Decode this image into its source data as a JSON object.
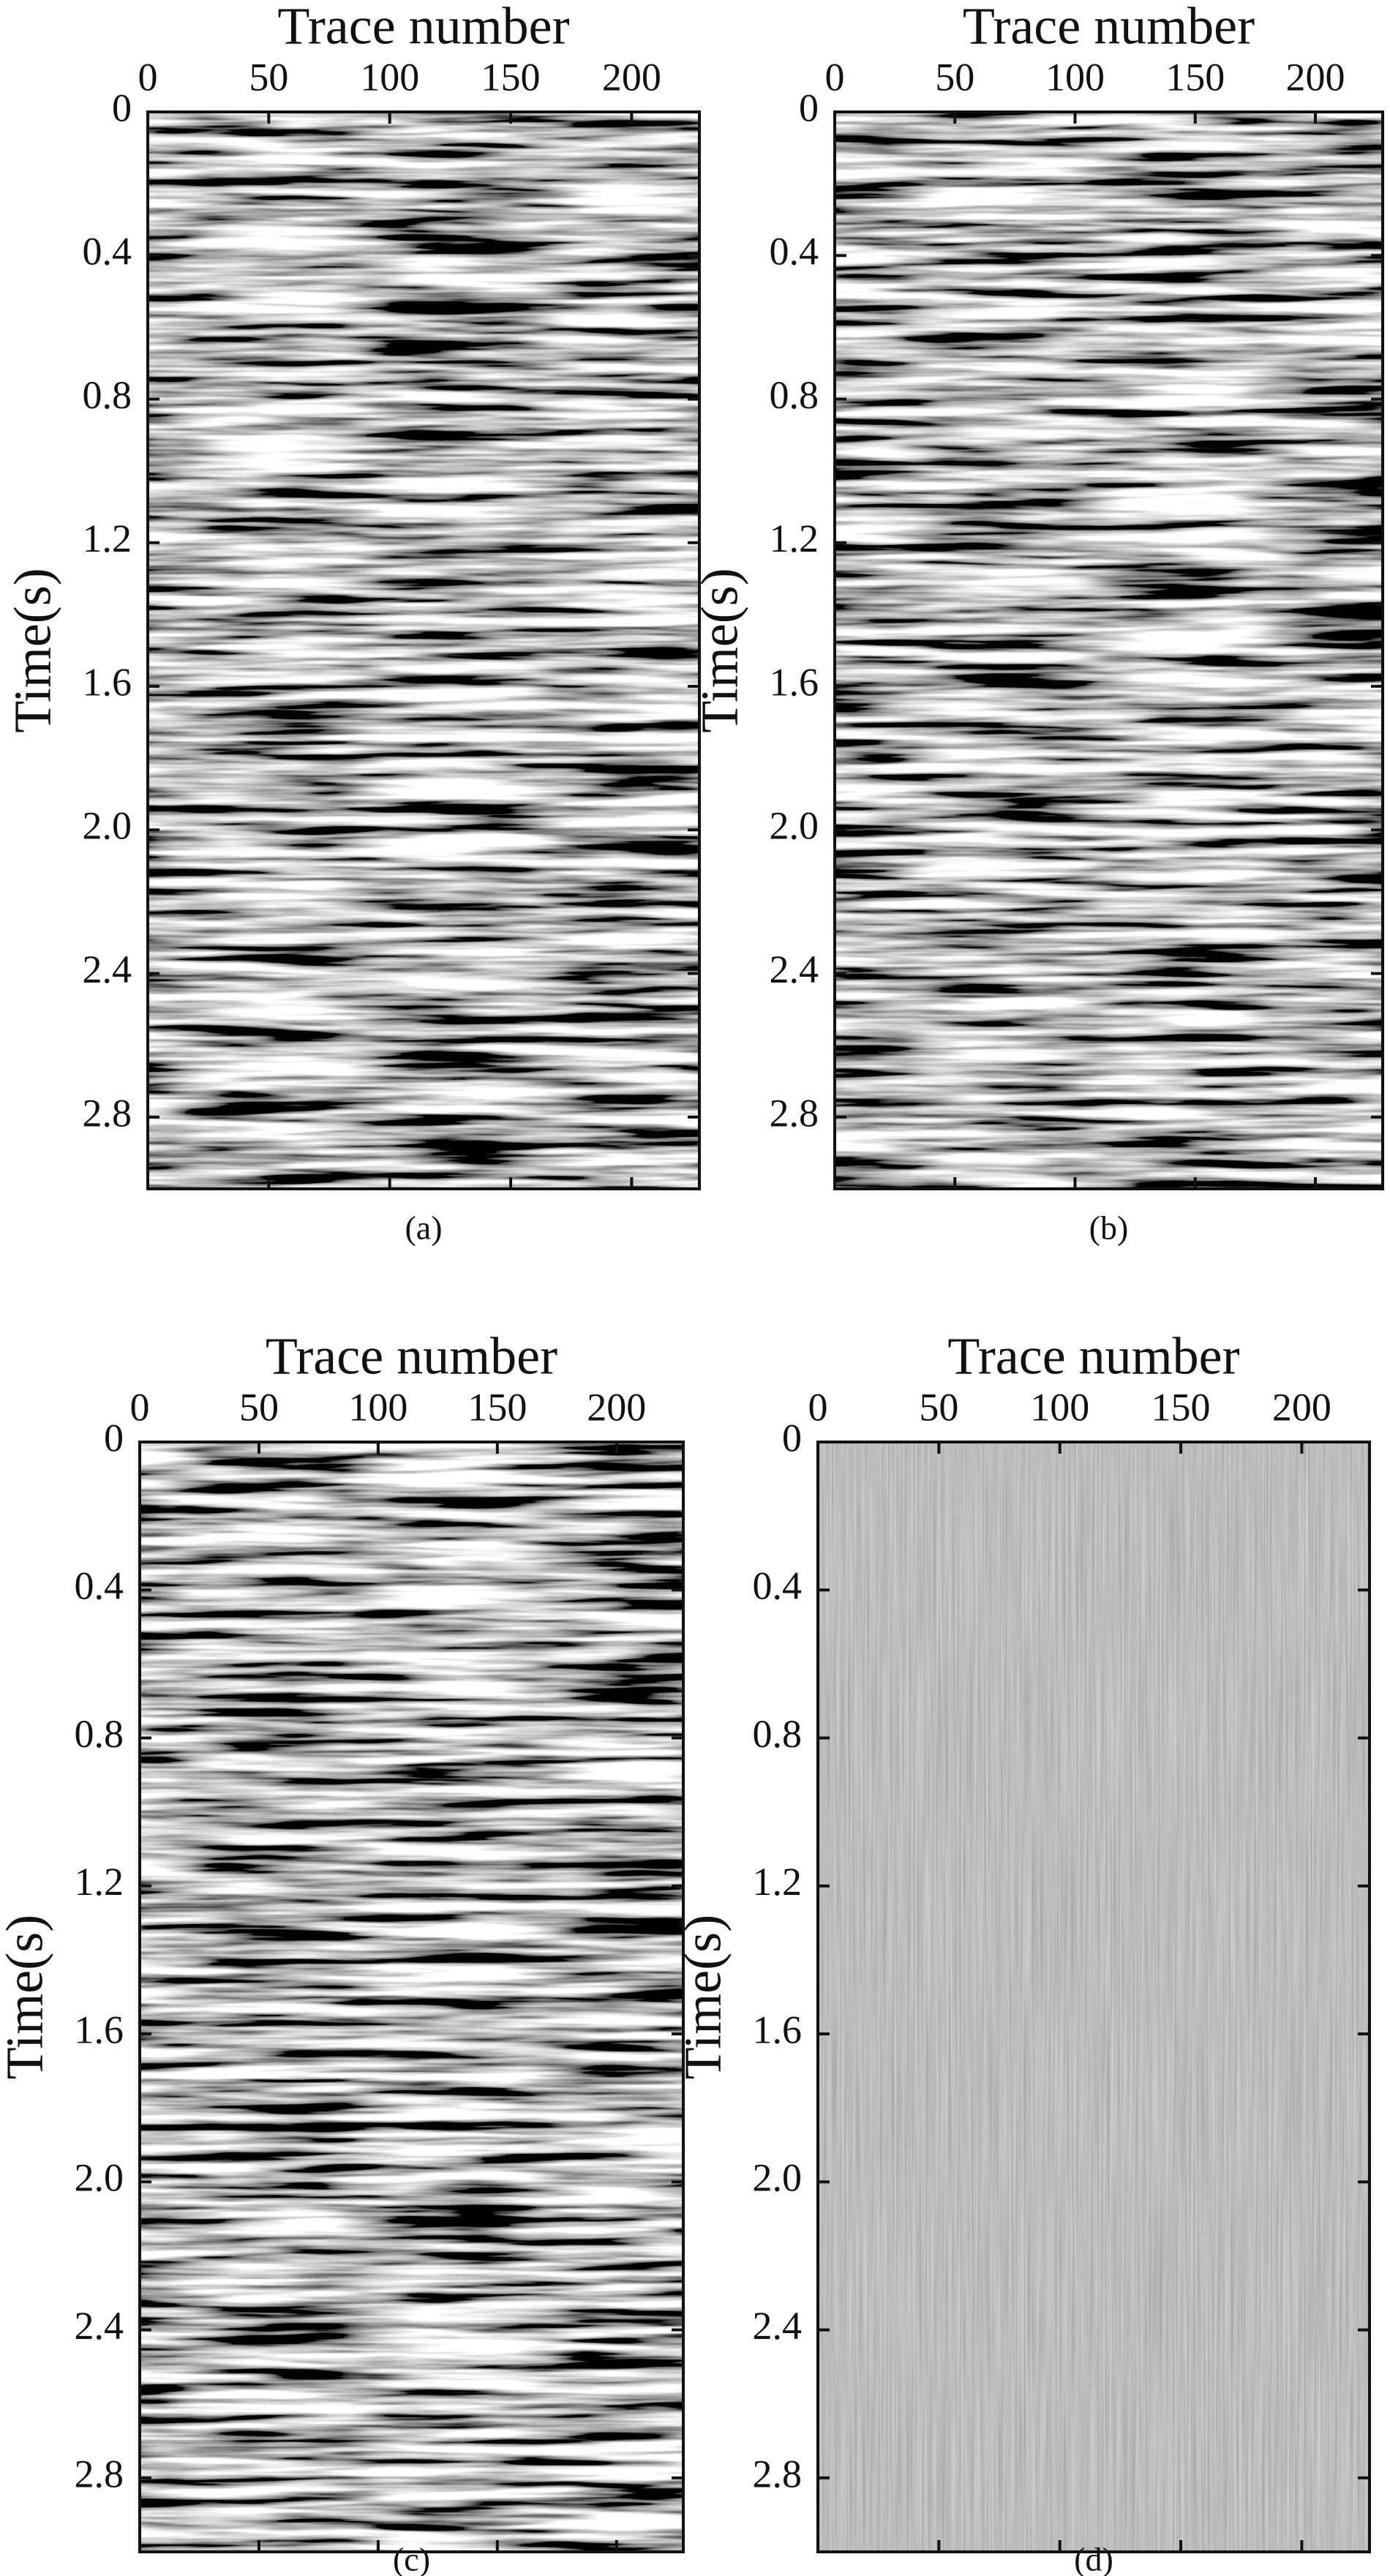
{
  "chart_data": [
    {
      "type": "seismic",
      "x_label": "Trace number",
      "y_label": "Time(s)",
      "caption": "(a)",
      "xlim": [
        0,
        228
      ],
      "xticks": [
        0,
        50,
        100,
        150,
        200
      ],
      "ylim": [
        0,
        3
      ],
      "yticks": [
        0,
        0.4,
        0.8,
        1.2,
        1.6,
        {
          "value": 2,
          "label": "2.0"
        },
        2.4,
        2.8
      ]
    },
    {
      "type": "seismic",
      "x_label": "Trace number",
      "y_label": "Time(s)",
      "caption": "(b)",
      "xlim": [
        0,
        228
      ],
      "xticks": [
        0,
        50,
        100,
        150,
        200
      ],
      "ylim": [
        0,
        3
      ],
      "yticks": [
        0,
        0.4,
        0.8,
        1.2,
        1.6,
        {
          "value": 2,
          "label": "2.0"
        },
        2.4,
        2.8
      ]
    },
    {
      "type": "seismic",
      "x_label": "Trace number",
      "y_label": "Time(s)",
      "caption": "(c)",
      "xlim": [
        0,
        228
      ],
      "xticks": [
        0,
        50,
        100,
        150,
        200
      ],
      "ylim": [
        0,
        3
      ],
      "yticks": [
        0,
        0.4,
        0.8,
        1.2,
        1.6,
        {
          "value": 2,
          "label": "2.0"
        },
        2.4,
        2.8
      ]
    },
    {
      "type": "seismic",
      "x_label": "Trace number",
      "y_label": "Time(s)",
      "caption": "(d)",
      "xlim": [
        0,
        228
      ],
      "xticks": [
        0,
        50,
        100,
        150,
        200
      ],
      "ylim": [
        0,
        3
      ],
      "yticks": [
        0,
        0.4,
        0.8,
        1.2,
        1.6,
        {
          "value": 2,
          "label": "2.0"
        },
        2.4,
        2.8
      ]
    }
  ]
}
